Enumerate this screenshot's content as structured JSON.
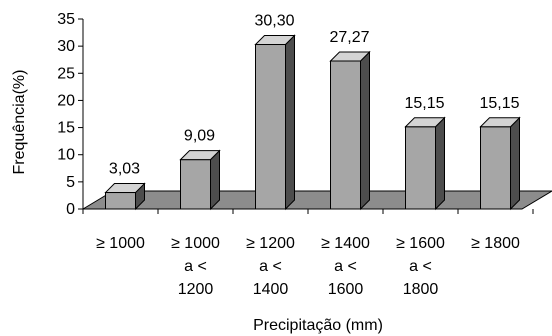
{
  "chart_data": {
    "type": "bar",
    "title": "",
    "xlabel": "Precipitação (mm)",
    "ylabel": "Frequência(%)",
    "ylim": [
      0,
      35
    ],
    "yticks": [
      0,
      5,
      10,
      15,
      20,
      25,
      30,
      35
    ],
    "categories": [
      [
        "≥ 1000"
      ],
      [
        "≥ 1000",
        "a <",
        "1200"
      ],
      [
        "≥ 1200",
        "a <",
        "1400"
      ],
      [
        "≥ 1400",
        "a <",
        "1600"
      ],
      [
        "≥ 1600",
        "a <",
        "1800"
      ],
      [
        "≥ 1800"
      ]
    ],
    "values": [
      3.03,
      9.09,
      30.3,
      27.27,
      15.15,
      15.15
    ],
    "data_labels": [
      "3,03",
      "9,09",
      "30,30",
      "27,27",
      "15,15",
      "15,15"
    ],
    "grid": false,
    "legend": "none",
    "style": "3d-column",
    "colors": {
      "bar_front": "#a6a6a6",
      "bar_side": "#4d4d4d",
      "bar_top": "#d4d4d4",
      "floor": "#8c8c8c",
      "axis": "#000000"
    }
  }
}
